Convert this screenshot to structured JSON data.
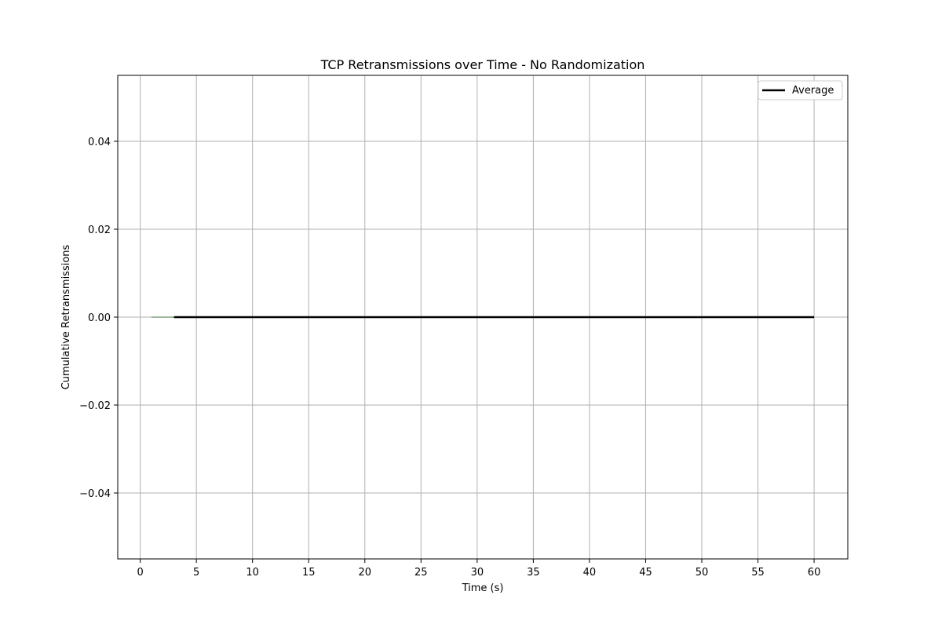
{
  "chart_data": {
    "type": "line",
    "title": "TCP Retransmissions over Time - No Randomization",
    "xlabel": "Time (s)",
    "ylabel": "Cumulative Retransmissions",
    "xlim": [
      -2,
      63
    ],
    "ylim": [
      -0.055,
      0.055
    ],
    "x_ticks": [
      0,
      5,
      10,
      15,
      20,
      25,
      30,
      35,
      40,
      45,
      50,
      55,
      60
    ],
    "x_tick_labels": [
      "0",
      "5",
      "10",
      "15",
      "20",
      "25",
      "30",
      "35",
      "40",
      "45",
      "50",
      "55",
      "60"
    ],
    "y_ticks": [
      -0.04,
      -0.02,
      0.0,
      0.02,
      0.04
    ],
    "y_tick_labels": [
      "−0.04",
      "−0.02",
      "0.00",
      "0.02",
      "0.04"
    ],
    "grid": true,
    "legend_position": "top-right",
    "series": [
      {
        "x": [
          1,
          3
        ],
        "y": [
          0,
          0
        ],
        "color": "#7f9f7f",
        "line_width": 1.5,
        "in_legend": false
      },
      {
        "name": "Average",
        "x": [
          3,
          60
        ],
        "y": [
          0,
          0
        ],
        "color": "#000000",
        "line_width": 2.5,
        "in_legend": true
      }
    ]
  }
}
